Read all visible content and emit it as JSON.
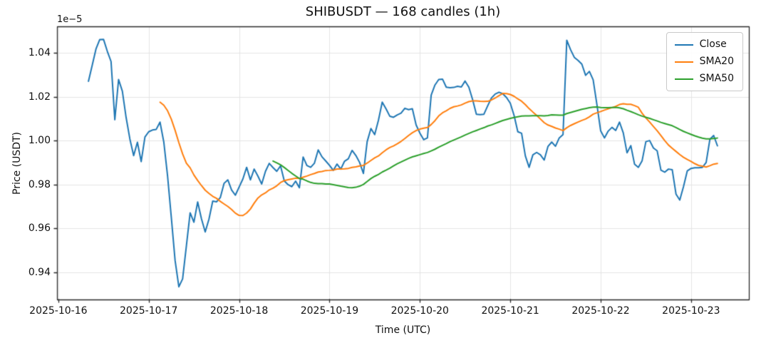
{
  "page": {
    "background": "#ffffff"
  },
  "chart_data": {
    "type": "line",
    "title": "SHIBUSDT — 168 candles (1h)",
    "xlabel": "Time (UTC)",
    "ylabel": "Price (USDT)",
    "y_offset_label": "1e−5",
    "value_scale": "1e-5",
    "num_candles": 168,
    "interval": "1h",
    "first_candle_utc": "2025-10-16 08:00",
    "last_candle_utc": "2025-10-23 07:00",
    "xlim_hours": [
      -8.35,
      175.35
    ],
    "ylim": [
      0.9276,
      1.052
    ],
    "grid": true,
    "legend_position": "upper right",
    "grid_color": "#e5e5e5",
    "spine_color": "#2b2b2b",
    "x_ticks": [
      {
        "pos": -8,
        "label": "2025-10-16"
      },
      {
        "pos": 16,
        "label": "2025-10-17"
      },
      {
        "pos": 40,
        "label": "2025-10-18"
      },
      {
        "pos": 64,
        "label": "2025-10-19"
      },
      {
        "pos": 88,
        "label": "2025-10-20"
      },
      {
        "pos": 112,
        "label": "2025-10-21"
      },
      {
        "pos": 136,
        "label": "2025-10-22"
      },
      {
        "pos": 160,
        "label": "2025-10-23"
      }
    ],
    "y_ticks": [
      {
        "value": 0.94,
        "label": "0.94"
      },
      {
        "value": 0.96,
        "label": "0.96"
      },
      {
        "value": 0.98,
        "label": "0.98"
      },
      {
        "value": 1.0,
        "label": "1.00"
      },
      {
        "value": 1.02,
        "label": "1.02"
      },
      {
        "value": 1.04,
        "label": "1.04"
      }
    ],
    "series": [
      {
        "name": "Close",
        "color": "#1f77b4",
        "kind": "raw",
        "values": [
          1.027,
          1.0343,
          1.0417,
          1.046,
          1.0461,
          1.0407,
          1.036,
          1.0095,
          1.0278,
          1.0225,
          1.0105,
          1.0007,
          0.9931,
          0.9992,
          0.9904,
          1.0016,
          1.004,
          1.0048,
          1.0051,
          1.0084,
          0.9994,
          0.984,
          0.965,
          0.9454,
          0.9334,
          0.937,
          0.952,
          0.9671,
          0.9628,
          0.972,
          0.9644,
          0.9584,
          0.9642,
          0.9724,
          0.9721,
          0.974,
          0.9805,
          0.9821,
          0.9775,
          0.9751,
          0.9788,
          0.9825,
          0.9878,
          0.9821,
          0.987,
          0.9838,
          0.9802,
          0.986,
          0.9896,
          0.9877,
          0.986,
          0.9885,
          0.9816,
          0.9799,
          0.979,
          0.9815,
          0.9785,
          0.9925,
          0.9886,
          0.9878,
          0.9897,
          0.9957,
          0.9926,
          0.9907,
          0.9887,
          0.9864,
          0.9893,
          0.987,
          0.9906,
          0.9917,
          0.9955,
          0.9932,
          0.99,
          0.985,
          0.9995,
          1.0055,
          1.0027,
          1.0093,
          1.0175,
          1.0145,
          1.0111,
          1.0106,
          1.0117,
          1.0125,
          1.0147,
          1.0141,
          1.0145,
          1.0071,
          1.0034,
          1.0004,
          1.0012,
          1.0207,
          1.0253,
          1.0278,
          1.028,
          1.0243,
          1.0241,
          1.0242,
          1.0247,
          1.0244,
          1.0271,
          1.0243,
          1.0186,
          1.012,
          1.0118,
          1.012,
          1.0158,
          1.0194,
          1.0212,
          1.022,
          1.0213,
          1.0196,
          1.017,
          1.0115,
          1.004,
          1.0033,
          0.993,
          0.9878,
          0.9935,
          0.9946,
          0.9935,
          0.9911,
          0.9973,
          0.9993,
          0.9974,
          1.0012,
          1.0027,
          1.0457,
          1.0414,
          1.0379,
          1.0365,
          1.0348,
          1.0297,
          1.0315,
          1.0277,
          1.0164,
          1.0044,
          1.0012,
          1.0043,
          1.006,
          1.0046,
          1.0084,
          1.0035,
          0.9944,
          0.9977,
          0.9892,
          0.9878,
          0.9908,
          0.9995,
          1.0,
          0.9966,
          0.9953,
          0.9865,
          0.9856,
          0.987,
          0.9867,
          0.9756,
          0.9729,
          0.9791,
          0.9862,
          0.9873,
          0.9876,
          0.9876,
          0.9878,
          0.99,
          1.0006,
          1.0023,
          0.9976
        ]
      },
      {
        "name": "SMA20",
        "color": "#ff7f0e",
        "kind": "sma",
        "window": 20
      },
      {
        "name": "SMA50",
        "color": "#2ca02c",
        "kind": "sma",
        "window": 50
      }
    ]
  }
}
